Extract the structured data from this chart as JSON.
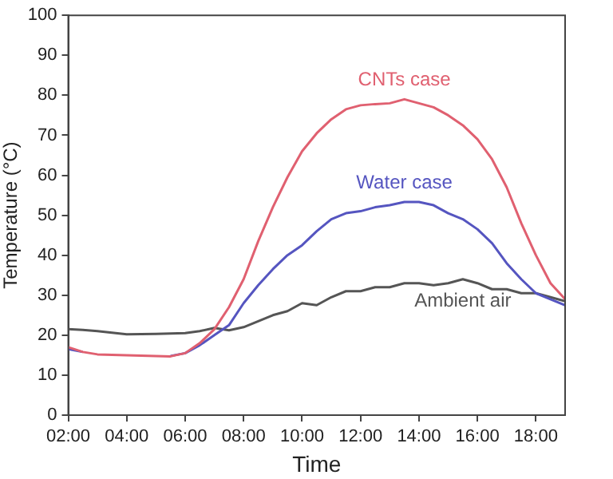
{
  "chart_data": {
    "type": "line",
    "xlabel": "Time",
    "ylabel": "Temperature (°C)",
    "x": [
      2,
      2.5,
      3,
      4,
      5,
      5.5,
      6,
      6.5,
      7,
      7.5,
      8,
      8.5,
      9,
      9.5,
      10,
      10.5,
      11,
      11.5,
      12,
      12.5,
      13,
      13.5,
      14,
      14.5,
      15,
      15.5,
      16,
      16.5,
      17,
      17.5,
      18,
      18.5,
      19
    ],
    "series": [
      {
        "name": "CNTs case",
        "color": "#e06070",
        "values": [
          17,
          15.8,
          15.2,
          15,
          14.8,
          14.7,
          15.5,
          18,
          21.5,
          27,
          34,
          43.5,
          52,
          59.5,
          66,
          70.5,
          74,
          76.5,
          77.5,
          77.8,
          78,
          79,
          78,
          77,
          75,
          72.5,
          69,
          64,
          57,
          48,
          40,
          33,
          29
        ]
      },
      {
        "name": "Water case",
        "color": "#5555c0",
        "values": [
          16.5,
          15.8,
          null,
          null,
          null,
          14.8,
          15.5,
          17.5,
          20,
          22.5,
          28,
          32.5,
          36.5,
          40,
          42.5,
          46,
          49,
          50.5,
          51,
          52,
          52.5,
          53.3,
          53.3,
          52.5,
          50.5,
          49,
          46.5,
          43,
          38,
          34,
          30.5,
          29,
          27.5
        ]
      },
      {
        "name": "Ambient air",
        "color": "#555555",
        "values": [
          21.5,
          21.3,
          21,
          20.2,
          20.3,
          20.4,
          20.5,
          21,
          21.8,
          21.2,
          22,
          23.5,
          25,
          26,
          28,
          27.5,
          29.5,
          31,
          31,
          32,
          32,
          33,
          33,
          32.5,
          33,
          34,
          33,
          31.5,
          31.5,
          30.5,
          30.5,
          29.5,
          28.5
        ]
      }
    ],
    "xlim": [
      2,
      19
    ],
    "xticks": [
      {
        "value": 2,
        "label": "02:00"
      },
      {
        "value": 4,
        "label": "04:00"
      },
      {
        "value": 6,
        "label": "06:00"
      },
      {
        "value": 8,
        "label": "08:00"
      },
      {
        "value": 10,
        "label": "10:00"
      },
      {
        "value": 12,
        "label": "12:00"
      },
      {
        "value": 14,
        "label": "14:00"
      },
      {
        "value": 16,
        "label": "16:00"
      },
      {
        "value": 18,
        "label": "18:00"
      }
    ],
    "ylim": [
      0,
      100
    ],
    "yticks": [
      0,
      10,
      20,
      30,
      40,
      50,
      60,
      70,
      80,
      90,
      100
    ],
    "grid": false,
    "legend": false,
    "marker": "none",
    "line_style": "solid"
  }
}
